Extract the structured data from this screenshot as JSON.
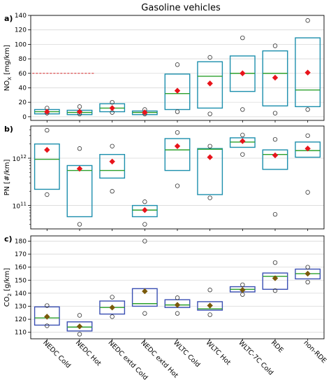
{
  "figure": {
    "title": "Gasoline vehicles"
  },
  "chart_data": [
    {
      "type": "box",
      "panel": "a)",
      "ylabel": "NOx [mg/km]",
      "yscale": "linear",
      "ylim": [
        -5,
        140
      ],
      "yticks": [
        "0",
        "20",
        "40",
        "60",
        "80",
        "100",
        "120",
        "140"
      ],
      "grid": "y",
      "categories": [
        "NEDC Cold",
        "NEDC Hot",
        "NEDC extd Cold",
        "NEDC extd Hot",
        "WLTC Cold",
        "WLTC Hot",
        "WLTC-7C Cold",
        "RDE",
        "non-RDE"
      ],
      "reference_line": {
        "y": 60,
        "x_from": "NEDC Cold",
        "x_to": "NEDC Hot",
        "style": "dashed",
        "color": "#d62728"
      },
      "series": [
        {
          "name": "",
          "q1": [
            4,
            3,
            7,
            3,
            10,
            12,
            35,
            15,
            14
          ],
          "median": [
            7,
            6,
            12,
            6,
            32,
            56,
            60,
            60,
            37
          ],
          "q3": [
            10,
            9,
            18,
            8,
            59,
            76,
            84,
            91,
            109
          ],
          "mean": [
            7,
            7,
            12,
            6,
            36,
            46,
            60,
            54,
            61
          ],
          "low": [
            5,
            4,
            6,
            4,
            7,
            4,
            10,
            5,
            10
          ],
          "high": [
            12,
            14,
            20,
            10,
            72,
            82,
            109,
            98,
            133
          ]
        }
      ]
    },
    {
      "type": "box",
      "panel": "b)",
      "ylabel": "PN [#/km]",
      "yscale": "log",
      "ylim": [
        32000000000.0,
        4800000000000.0
      ],
      "yticks": [
        "10^11",
        "10^12"
      ],
      "grid": "y",
      "categories": [
        "NEDC Cold",
        "NEDC Hot",
        "NEDC extd Cold",
        "NEDC extd Hot",
        "WLTC Cold",
        "WLTC Hot",
        "WLTC-7C Cold",
        "RDE",
        "non-RDE"
      ],
      "series": [
        {
          "name": "",
          "q1": [
            220000000000.0,
            58000000000.0,
            380000000000.0,
            58000000000.0,
            550000000000.0,
            170000000000.0,
            1700000000000.0,
            580000000000.0,
            1050000000000.0
          ],
          "median": [
            950000000000.0,
            550000000000.0,
            550000000000.0,
            80000000000.0,
            1500000000000.0,
            1550000000000.0,
            2200000000000.0,
            1200000000000.0,
            1450000000000.0
          ],
          "q3": [
            2000000000000.0,
            700000000000.0,
            1200000000000.0,
            100000000000.0,
            2600000000000.0,
            1600000000000.0,
            2700000000000.0,
            1500000000000.0,
            2200000000000.0
          ],
          "mean": [
            1500000000000.0,
            600000000000.0,
            850000000000.0,
            80000000000.0,
            1800000000000.0,
            1050000000000.0,
            2300000000000.0,
            1150000000000.0,
            1600000000000.0
          ],
          "low": [
            170000000000.0,
            40000000000.0,
            200000000000.0,
            40000000000.0,
            260000000000.0,
            145000000000.0,
            1200000000000.0,
            65000000000.0,
            190000000000.0
          ],
          "high": [
            3900000000000.0,
            1600000000000.0,
            1800000000000.0,
            120000000000.0,
            3500000000000.0,
            1800000000000.0,
            3100000000000.0,
            2500000000000.0,
            3000000000000.0
          ]
        }
      ]
    },
    {
      "type": "box",
      "panel": "c)",
      "ylabel": "CO2 [g/km]",
      "yscale": "linear",
      "ylim": [
        105,
        184
      ],
      "yticks": [
        "110",
        "120",
        "130",
        "140",
        "150",
        "160",
        "170",
        "180"
      ],
      "grid": "y",
      "categories": [
        "NEDC Cold",
        "NEDC Hot",
        "NEDC extd Cold",
        "NEDC extd Hot",
        "WLTC Cold",
        "WLTC Hot",
        "WLTC-7C Cold",
        "RDE",
        "non-RDE"
      ],
      "series": [
        {
          "name": "",
          "q1": [
            115.5,
            111,
            124,
            130,
            129,
            127,
            141,
            143,
            151
          ],
          "median": [
            121,
            114,
            129,
            132,
            131,
            128,
            143,
            153,
            155
          ],
          "q3": [
            129.5,
            118,
            134,
            143.5,
            135,
            133.5,
            145,
            155.5,
            158.5
          ],
          "mean": [
            122,
            114.5,
            129,
            141.5,
            131,
            130.5,
            142.5,
            151.5,
            155
          ],
          "low": [
            115,
            108.5,
            122,
            124.5,
            124.5,
            123.5,
            139,
            142,
            148.5
          ],
          "high": [
            130.5,
            123,
            137,
            180,
            136.5,
            142.5,
            146.5,
            163.5,
            160
          ]
        }
      ]
    }
  ]
}
